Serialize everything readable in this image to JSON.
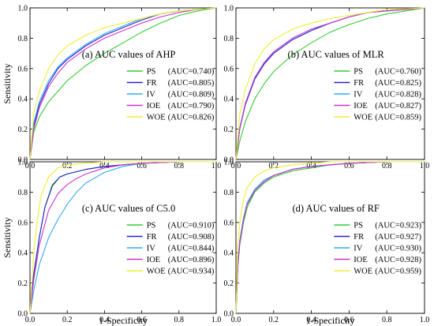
{
  "chart_data": [
    {
      "type": "line",
      "panel": "a",
      "title": "(a) AUC values of AHP",
      "xlabel": "",
      "ylabel": "Sensitivity",
      "xlim": [
        0,
        1
      ],
      "ylim": [
        0,
        1
      ],
      "xticks": [
        "0.0",
        "0.2",
        "0.4",
        "0.6",
        "0.8",
        "1.0"
      ],
      "yticks": [
        "0.0",
        "0.2",
        "0.4",
        "0.6",
        "0.8",
        "1.0"
      ],
      "legend_position": "lower-right",
      "series": [
        {
          "name": "PS",
          "auc_label": "(AUC=0.740)",
          "color": "#33cc33",
          "x": [
            0,
            0.02,
            0.05,
            0.1,
            0.15,
            0.2,
            0.3,
            0.4,
            0.5,
            0.6,
            0.7,
            0.8,
            0.9,
            1.0
          ],
          "y": [
            0,
            0.18,
            0.28,
            0.38,
            0.45,
            0.52,
            0.62,
            0.7,
            0.77,
            0.84,
            0.9,
            0.95,
            0.98,
            1.0
          ]
        },
        {
          "name": "FR",
          "auc_label": "(AUC=0.805)",
          "color": "#2222cc",
          "x": [
            0,
            0.02,
            0.05,
            0.1,
            0.15,
            0.2,
            0.3,
            0.4,
            0.5,
            0.6,
            0.7,
            0.8,
            0.9,
            1.0
          ],
          "y": [
            0,
            0.22,
            0.36,
            0.5,
            0.6,
            0.66,
            0.75,
            0.82,
            0.87,
            0.92,
            0.96,
            0.98,
            0.99,
            1.0
          ]
        },
        {
          "name": "IV",
          "auc_label": "(AUC=0.809)",
          "color": "#33aaee",
          "x": [
            0,
            0.02,
            0.05,
            0.1,
            0.15,
            0.2,
            0.3,
            0.4,
            0.5,
            0.6,
            0.7,
            0.8,
            0.9,
            1.0
          ],
          "y": [
            0,
            0.24,
            0.38,
            0.52,
            0.61,
            0.67,
            0.76,
            0.83,
            0.88,
            0.93,
            0.96,
            0.98,
            0.99,
            1.0
          ]
        },
        {
          "name": "IOE",
          "auc_label": "(AUC=0.790)",
          "color": "#cc33cc",
          "x": [
            0,
            0.02,
            0.05,
            0.1,
            0.15,
            0.2,
            0.3,
            0.4,
            0.5,
            0.6,
            0.7,
            0.8,
            0.9,
            1.0
          ],
          "y": [
            0,
            0.2,
            0.34,
            0.48,
            0.57,
            0.64,
            0.73,
            0.8,
            0.85,
            0.9,
            0.94,
            0.97,
            0.99,
            1.0
          ]
        },
        {
          "name": "WOE",
          "auc_label": "(AUC=0.826)",
          "color": "#eeee33",
          "x": [
            0,
            0.02,
            0.05,
            0.1,
            0.15,
            0.2,
            0.3,
            0.4,
            0.5,
            0.6,
            0.7,
            0.8,
            0.9,
            1.0
          ],
          "y": [
            0,
            0.3,
            0.45,
            0.6,
            0.69,
            0.75,
            0.82,
            0.87,
            0.9,
            0.93,
            0.96,
            0.98,
            0.99,
            1.0
          ]
        }
      ]
    },
    {
      "type": "line",
      "panel": "b",
      "title": "(b) AUC values of MLR",
      "xlabel": "",
      "ylabel": "",
      "xlim": [
        0,
        1
      ],
      "ylim": [
        0,
        1
      ],
      "xticks": [
        "0.0",
        "0.2",
        "0.4",
        "0.6",
        "0.8",
        "1.0"
      ],
      "yticks": [
        "0.0",
        "0.2",
        "0.4",
        "0.6",
        "0.8",
        "1.0"
      ],
      "legend_position": "lower-right",
      "series": [
        {
          "name": "PS",
          "auc_label": "(AUC=0.760)",
          "color": "#33cc33",
          "x": [
            0,
            0.02,
            0.05,
            0.1,
            0.15,
            0.2,
            0.3,
            0.4,
            0.5,
            0.6,
            0.7,
            0.8,
            0.9,
            1.0
          ],
          "y": [
            0,
            0.12,
            0.25,
            0.4,
            0.5,
            0.58,
            0.69,
            0.77,
            0.84,
            0.89,
            0.93,
            0.96,
            0.98,
            1.0
          ]
        },
        {
          "name": "FR",
          "auc_label": "(AUC=0.825)",
          "color": "#2222cc",
          "x": [
            0,
            0.02,
            0.05,
            0.1,
            0.15,
            0.2,
            0.3,
            0.4,
            0.5,
            0.6,
            0.7,
            0.8,
            0.9,
            1.0
          ],
          "y": [
            0,
            0.2,
            0.36,
            0.53,
            0.63,
            0.7,
            0.79,
            0.85,
            0.9,
            0.94,
            0.97,
            0.98,
            0.99,
            1.0
          ]
        },
        {
          "name": "IV",
          "auc_label": "(AUC=0.828)",
          "color": "#33aaee",
          "x": [
            0,
            0.02,
            0.05,
            0.1,
            0.15,
            0.2,
            0.3,
            0.4,
            0.5,
            0.6,
            0.7,
            0.8,
            0.9,
            1.0
          ],
          "y": [
            0,
            0.21,
            0.37,
            0.54,
            0.64,
            0.71,
            0.8,
            0.86,
            0.9,
            0.94,
            0.97,
            0.98,
            0.99,
            1.0
          ]
        },
        {
          "name": "IOE",
          "auc_label": "(AUC=0.827)",
          "color": "#cc33cc",
          "x": [
            0,
            0.02,
            0.05,
            0.1,
            0.15,
            0.2,
            0.3,
            0.4,
            0.5,
            0.6,
            0.7,
            0.8,
            0.9,
            1.0
          ],
          "y": [
            0,
            0.2,
            0.37,
            0.54,
            0.64,
            0.71,
            0.8,
            0.86,
            0.9,
            0.94,
            0.97,
            0.98,
            0.99,
            1.0
          ]
        },
        {
          "name": "WOE",
          "auc_label": "(AUC=0.859)",
          "color": "#eeee33",
          "x": [
            0,
            0.02,
            0.05,
            0.1,
            0.15,
            0.2,
            0.3,
            0.4,
            0.5,
            0.6,
            0.7,
            0.8,
            0.9,
            1.0
          ],
          "y": [
            0,
            0.3,
            0.46,
            0.63,
            0.73,
            0.79,
            0.86,
            0.9,
            0.93,
            0.95,
            0.97,
            0.99,
            0.995,
            1.0
          ]
        }
      ]
    },
    {
      "type": "line",
      "panel": "c",
      "title": "(c) AUC values of C5.0",
      "xlabel": "1-Specificity",
      "ylabel": "Sensitivity",
      "xlim": [
        0,
        1
      ],
      "ylim": [
        0,
        1
      ],
      "xticks": [
        "0.0",
        "0.2",
        "0.4",
        "0.6",
        "0.8",
        "1.0"
      ],
      "yticks": [
        "0.0",
        "0.2",
        "0.4",
        "0.6",
        "0.8",
        "1.0"
      ],
      "legend_position": "lower-right",
      "series": [
        {
          "name": "PS",
          "auc_label": "(AUC=0.910)",
          "color": "#33cc33",
          "x": [
            0,
            0.02,
            0.05,
            0.08,
            0.12,
            0.16,
            0.2,
            0.3,
            0.4,
            0.5,
            0.6,
            0.8,
            1.0
          ],
          "y": [
            0,
            0.25,
            0.5,
            0.7,
            0.85,
            0.9,
            0.92,
            0.95,
            0.97,
            0.98,
            0.99,
            1.0,
            1.0
          ]
        },
        {
          "name": "FR",
          "auc_label": "(AUC=0.908)",
          "color": "#2222cc",
          "x": [
            0,
            0.02,
            0.05,
            0.08,
            0.12,
            0.16,
            0.2,
            0.3,
            0.4,
            0.5,
            0.6,
            0.8,
            1.0
          ],
          "y": [
            0,
            0.26,
            0.5,
            0.7,
            0.84,
            0.9,
            0.92,
            0.95,
            0.97,
            0.98,
            0.99,
            1.0,
            1.0
          ]
        },
        {
          "name": "IV",
          "auc_label": "(AUC=0.844)",
          "color": "#33aaee",
          "x": [
            0,
            0.02,
            0.05,
            0.1,
            0.15,
            0.2,
            0.25,
            0.3,
            0.4,
            0.5,
            0.6,
            0.8,
            1.0
          ],
          "y": [
            0,
            0.15,
            0.32,
            0.5,
            0.62,
            0.72,
            0.8,
            0.86,
            0.93,
            0.97,
            0.99,
            1.0,
            1.0
          ]
        },
        {
          "name": "IOE",
          "auc_label": "(AUC=0.896)",
          "color": "#cc33cc",
          "x": [
            0,
            0.02,
            0.05,
            0.1,
            0.15,
            0.2,
            0.25,
            0.3,
            0.4,
            0.5,
            0.6,
            0.8,
            1.0
          ],
          "y": [
            0,
            0.22,
            0.45,
            0.68,
            0.79,
            0.85,
            0.89,
            0.92,
            0.96,
            0.98,
            0.99,
            1.0,
            1.0
          ]
        },
        {
          "name": "WOE",
          "auc_label": "(AUC=0.934)",
          "color": "#eeee33",
          "x": [
            0,
            0.02,
            0.04,
            0.06,
            0.1,
            0.15,
            0.2,
            0.3,
            0.4,
            0.5,
            0.6,
            0.8,
            1.0
          ],
          "y": [
            0,
            0.4,
            0.62,
            0.78,
            0.9,
            0.96,
            0.98,
            0.99,
            1.0,
            1.0,
            1.0,
            1.0,
            1.0
          ]
        }
      ]
    },
    {
      "type": "line",
      "panel": "d",
      "title": "(d) AUC values of RF",
      "xlabel": "1-Specificity",
      "ylabel": "",
      "xlim": [
        0,
        1
      ],
      "ylim": [
        0,
        1
      ],
      "xticks": [
        "0.0",
        "0.2",
        "0.4",
        "0.6",
        "0.8",
        "1.0"
      ],
      "yticks": [
        "0.0",
        "0.2",
        "0.4",
        "0.6",
        "0.8",
        "1.0"
      ],
      "legend_position": "lower-right",
      "series": [
        {
          "name": "PS",
          "auc_label": "(AUC=0.923)",
          "color": "#33cc33",
          "x": [
            0,
            0.01,
            0.02,
            0.04,
            0.06,
            0.1,
            0.15,
            0.2,
            0.3,
            0.4,
            0.5,
            0.6,
            0.8,
            1.0
          ],
          "y": [
            0,
            0.3,
            0.45,
            0.6,
            0.7,
            0.8,
            0.86,
            0.9,
            0.94,
            0.96,
            0.98,
            0.99,
            1.0,
            1.0
          ]
        },
        {
          "name": "FR",
          "auc_label": "(AUC=0.927)",
          "color": "#2222cc",
          "x": [
            0,
            0.01,
            0.02,
            0.04,
            0.06,
            0.1,
            0.15,
            0.2,
            0.3,
            0.4,
            0.5,
            0.6,
            0.8,
            1.0
          ],
          "y": [
            0,
            0.32,
            0.47,
            0.62,
            0.72,
            0.81,
            0.87,
            0.91,
            0.95,
            0.97,
            0.98,
            0.99,
            1.0,
            1.0
          ]
        },
        {
          "name": "IV",
          "auc_label": "(AUC=0.930)",
          "color": "#33aaee",
          "x": [
            0,
            0.01,
            0.02,
            0.04,
            0.06,
            0.1,
            0.15,
            0.2,
            0.3,
            0.4,
            0.5,
            0.6,
            0.8,
            1.0
          ],
          "y": [
            0,
            0.33,
            0.48,
            0.63,
            0.73,
            0.82,
            0.88,
            0.91,
            0.95,
            0.97,
            0.98,
            0.99,
            1.0,
            1.0
          ]
        },
        {
          "name": "IOE",
          "auc_label": "(AUC=0.928)",
          "color": "#cc33cc",
          "x": [
            0,
            0.01,
            0.02,
            0.04,
            0.06,
            0.1,
            0.15,
            0.2,
            0.3,
            0.4,
            0.5,
            0.6,
            0.8,
            1.0
          ],
          "y": [
            0,
            0.32,
            0.47,
            0.62,
            0.72,
            0.81,
            0.87,
            0.91,
            0.95,
            0.97,
            0.98,
            0.99,
            1.0,
            1.0
          ]
        },
        {
          "name": "WOE",
          "auc_label": "(AUC=0.959)",
          "color": "#eeee33",
          "x": [
            0,
            0.01,
            0.02,
            0.04,
            0.06,
            0.1,
            0.15,
            0.2,
            0.3,
            0.4,
            0.5,
            0.6,
            0.8,
            1.0
          ],
          "y": [
            0,
            0.45,
            0.6,
            0.75,
            0.83,
            0.9,
            0.94,
            0.96,
            0.98,
            0.99,
            1.0,
            1.0,
            1.0,
            1.0
          ]
        }
      ]
    }
  ]
}
